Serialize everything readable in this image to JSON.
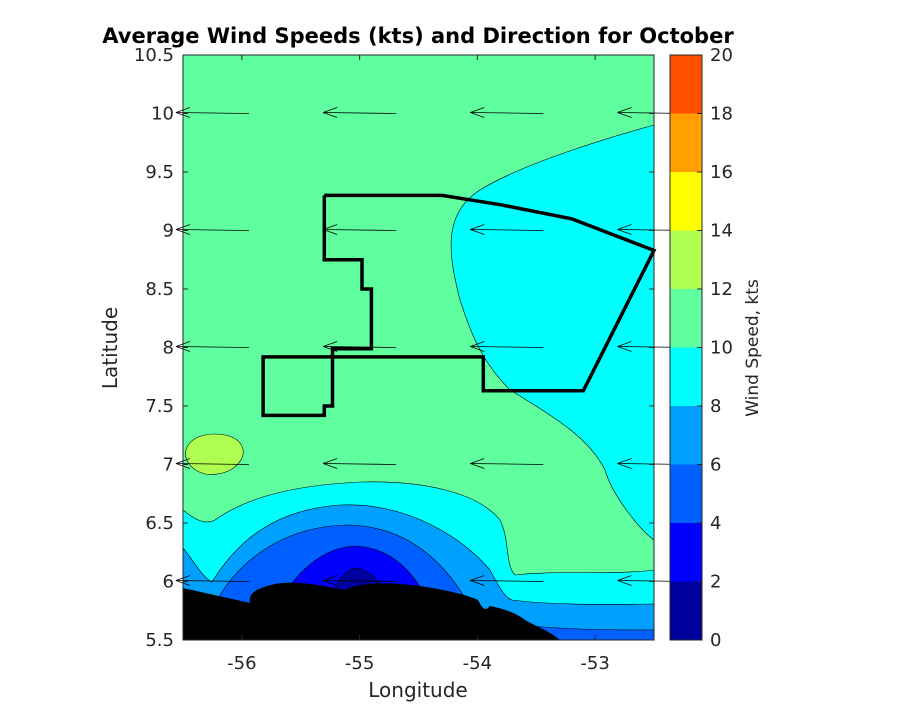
{
  "chart_data": {
    "type": "contour",
    "title": "Average Wind Speeds (kts) and Direction for October",
    "xlabel": "Longitude",
    "ylabel": "Latitude",
    "xlim": [
      -56.5,
      -52.5
    ],
    "ylim": [
      5.5,
      10.5
    ],
    "xticks": [
      "-56",
      "-55",
      "-54",
      "-53"
    ],
    "xtick_values": [
      -56,
      -55,
      -54,
      -53
    ],
    "yticks": [
      "5.5",
      "6",
      "6.5",
      "7",
      "7.5",
      "8",
      "8.5",
      "9",
      "9.5",
      "10",
      "10.5"
    ],
    "ytick_values": [
      5.5,
      6,
      6.5,
      7,
      7.5,
      8,
      8.5,
      9,
      9.5,
      10,
      10.5
    ],
    "colorbar": {
      "label": "Wind Speed, kts",
      "ticks": [
        "0",
        "2",
        "4",
        "6",
        "8",
        "10",
        "12",
        "14",
        "16",
        "18",
        "20"
      ],
      "levels": [
        0,
        2,
        4,
        6,
        8,
        10,
        12,
        14,
        16,
        18,
        20
      ],
      "colors": [
        "#00009f",
        "#0000ff",
        "#0060ff",
        "#00a0ff",
        "#00ffff",
        "#5fffa0",
        "#afff50",
        "#ffff00",
        "#ffa000",
        "#ff5000"
      ]
    },
    "wind_vectors": {
      "direction": "westward",
      "rows": [
        {
          "lat": 10.0,
          "lons": [
            -56.25,
            -55.0,
            -53.75,
            -52.5
          ]
        },
        {
          "lat": 9.0,
          "lons": [
            -56.25,
            -55.0,
            -53.75,
            -52.5
          ]
        },
        {
          "lat": 8.0,
          "lons": [
            -56.25,
            -55.0,
            -53.75,
            -52.5
          ]
        },
        {
          "lat": 7.0,
          "lons": [
            -56.25,
            -55.0,
            -53.75,
            -52.5
          ]
        },
        {
          "lat": 6.0,
          "lons": [
            -56.25,
            -55.0,
            -53.75,
            -52.5
          ]
        }
      ],
      "speed_kts": [
        [
          11,
          11,
          11,
          10
        ],
        [
          11,
          11,
          10,
          10
        ],
        [
          11,
          11,
          10,
          10
        ],
        [
          11,
          11,
          11,
          10
        ],
        [
          7,
          3,
          6,
          8
        ]
      ]
    },
    "boundary_polygon_lonlat": [
      [
        -55.3,
        9.3
      ],
      [
        -54.3,
        9.3
      ],
      [
        -53.8,
        9.22
      ],
      [
        -53.2,
        9.1
      ],
      [
        -52.5,
        8.83
      ],
      [
        -53.1,
        7.63
      ],
      [
        -53.95,
        7.63
      ],
      [
        -53.95,
        7.92
      ],
      [
        -55.82,
        7.92
      ],
      [
        -55.82,
        7.42
      ],
      [
        -55.3,
        7.42
      ],
      [
        -55.3,
        7.5
      ],
      [
        -55.23,
        7.5
      ],
      [
        -55.23,
        7.99
      ],
      [
        -54.9,
        7.99
      ],
      [
        -54.9,
        8.5
      ],
      [
        -54.98,
        8.5
      ],
      [
        -54.98,
        8.75
      ],
      [
        -55.3,
        8.75
      ],
      [
        -55.3,
        9.3
      ]
    ],
    "grid": false
  }
}
